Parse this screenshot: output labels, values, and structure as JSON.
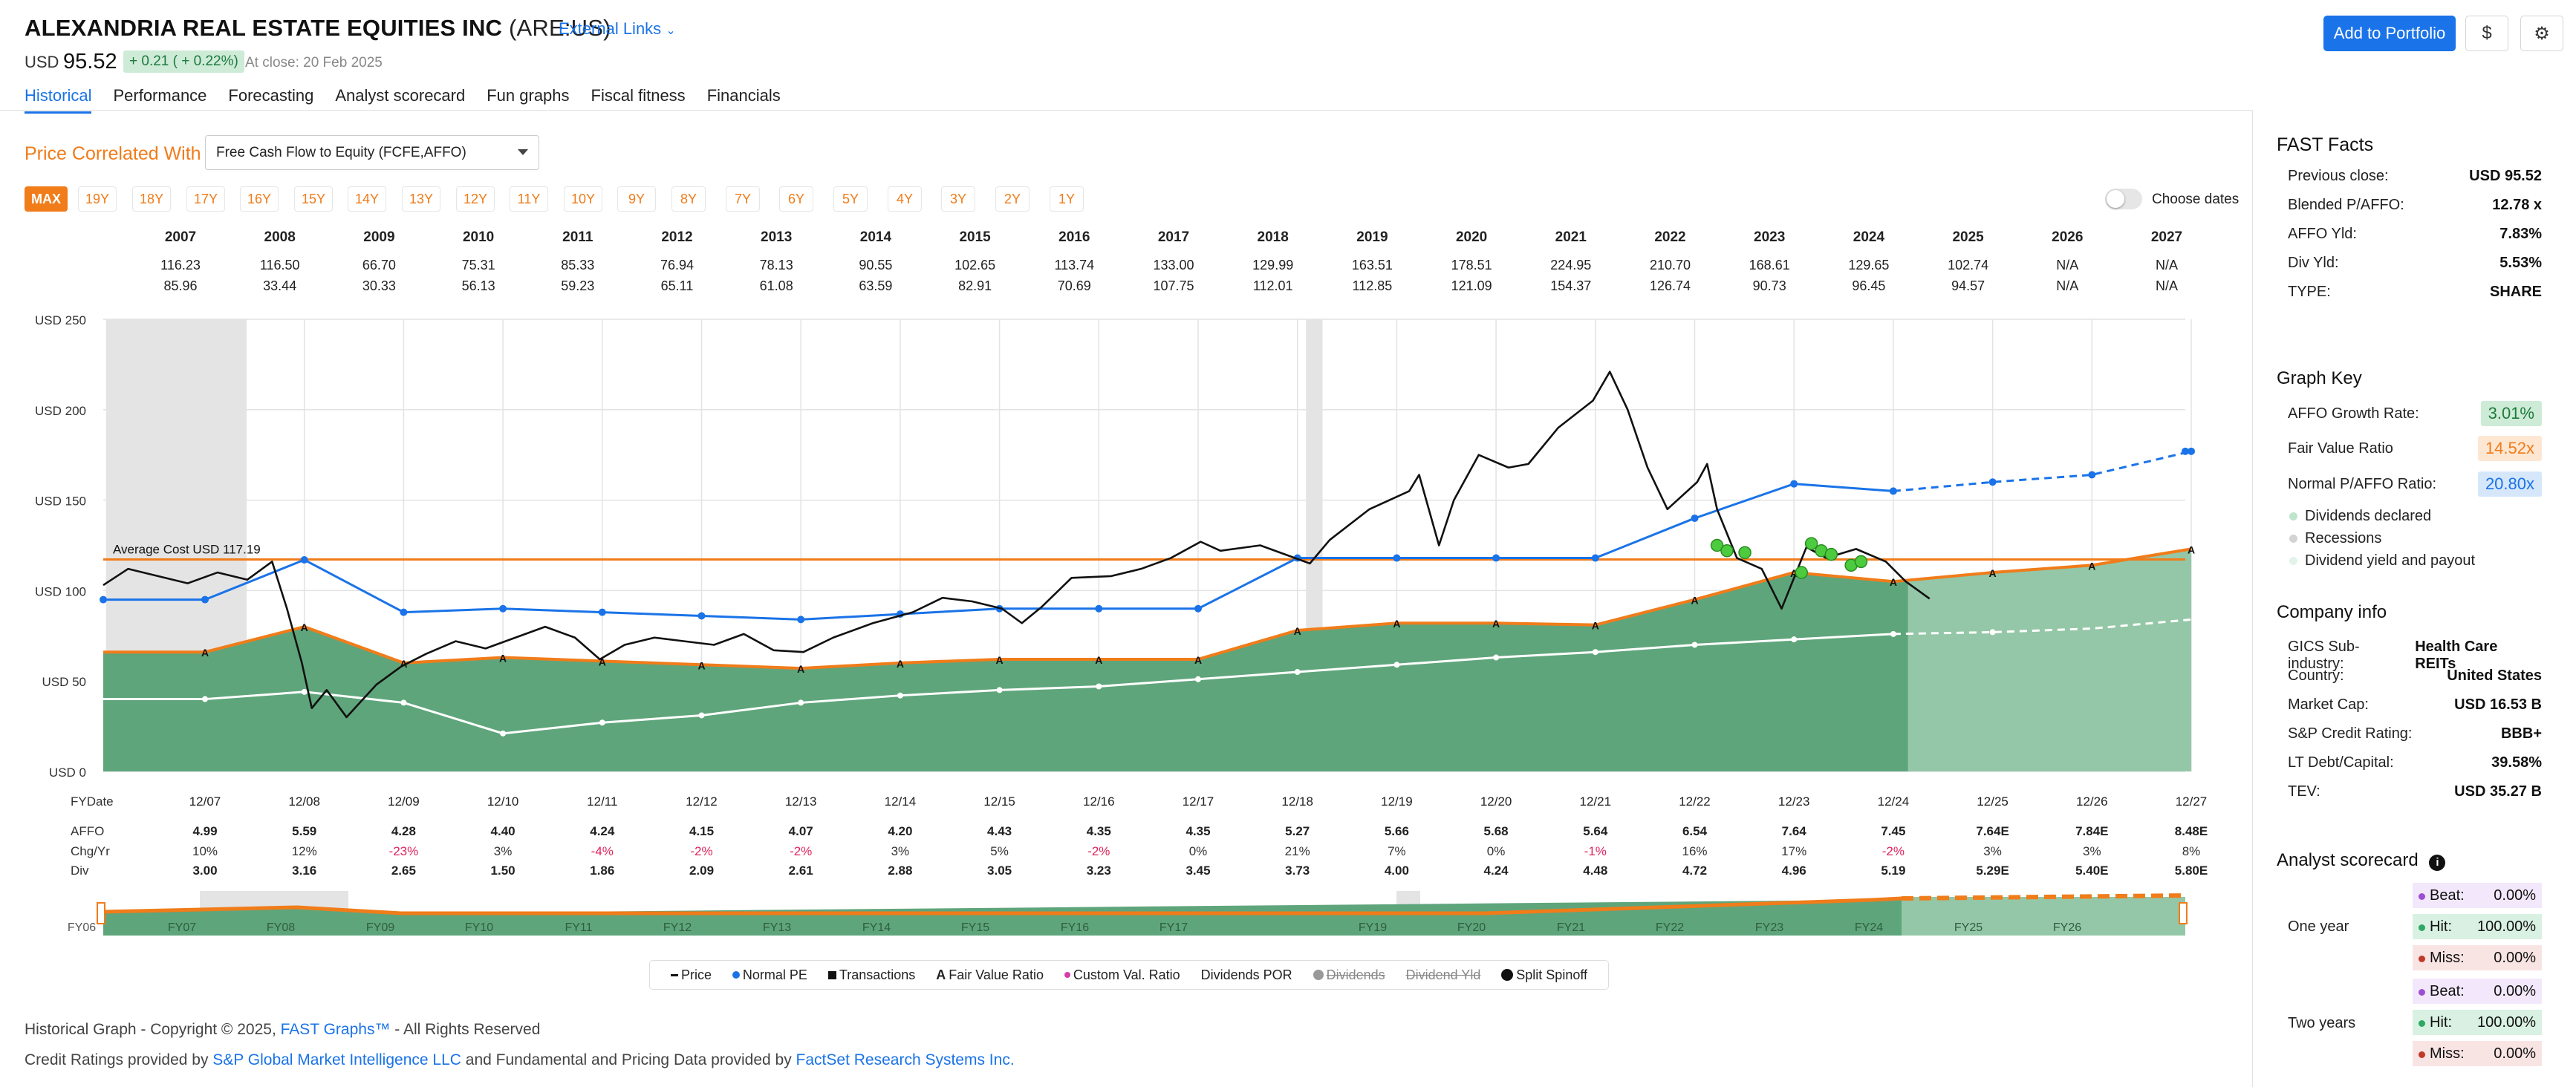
{
  "header": {
    "company": "ALEXANDRIA REAL ESTATE EQUITIES INC",
    "ticker": "(ARE:US)",
    "external_links": "External Links",
    "currency": "USD",
    "price": "95.52",
    "change": "+ 0.21 ( + 0.22%)",
    "close_note": "At close: 20 Feb 2025",
    "add_portfolio": "Add to Portfolio"
  },
  "tabs": [
    "Historical",
    "Performance",
    "Forecasting",
    "Analyst scorecard",
    "Fun graphs",
    "Fiscal fitness",
    "Financials"
  ],
  "controls": {
    "price_corr_label": "Price Correlated With",
    "price_corr_value": "Free Cash Flow to Equity (FCFE,AFFO)",
    "ranges": [
      "MAX",
      "19Y",
      "18Y",
      "17Y",
      "16Y",
      "15Y",
      "14Y",
      "13Y",
      "12Y",
      "11Y",
      "10Y",
      "9Y",
      "8Y",
      "7Y",
      "6Y",
      "5Y",
      "4Y",
      "3Y",
      "2Y",
      "1Y"
    ],
    "choose_dates": "Choose dates"
  },
  "year_table": {
    "years": [
      "2007",
      "2008",
      "2009",
      "2010",
      "2011",
      "2012",
      "2013",
      "2014",
      "2015",
      "2016",
      "2017",
      "2018",
      "2019",
      "2020",
      "2021",
      "2022",
      "2023",
      "2024",
      "2025",
      "2026",
      "2027"
    ],
    "highs": [
      "116.23",
      "116.50",
      "66.70",
      "75.31",
      "85.33",
      "76.94",
      "78.13",
      "90.55",
      "102.65",
      "113.74",
      "133.00",
      "129.99",
      "163.51",
      "178.51",
      "224.95",
      "210.70",
      "168.61",
      "129.65",
      "102.74",
      "N/A",
      "N/A"
    ],
    "lows": [
      "85.96",
      "33.44",
      "30.33",
      "56.13",
      "59.23",
      "65.11",
      "61.08",
      "63.59",
      "82.91",
      "70.69",
      "107.75",
      "112.01",
      "112.85",
      "121.09",
      "154.37",
      "126.74",
      "90.73",
      "96.45",
      "94.57",
      "N/A",
      "N/A"
    ]
  },
  "chart_data": {
    "type": "line",
    "y_axis_ticks": [
      "USD 250",
      "USD 200",
      "USD 150",
      "USD 100",
      "USD 50",
      "USD 0"
    ],
    "ylim": [
      0,
      250
    ],
    "average_cost_label": "Average Cost USD 117.19",
    "average_cost": 117.19,
    "recessions": [
      [
        "2008-01",
        "2009-06"
      ],
      [
        "2020-02",
        "2020-04"
      ]
    ],
    "fy_dates": [
      "12/07",
      "12/08",
      "12/09",
      "12/10",
      "12/11",
      "12/12",
      "12/13",
      "12/14",
      "12/15",
      "12/16",
      "12/17",
      "12/18",
      "12/19",
      "12/20",
      "12/21",
      "12/22",
      "12/23",
      "12/24",
      "12/25",
      "12/26",
      "12/27"
    ],
    "series": [
      {
        "name": "Fair Value Ratio",
        "color": "#f07c1a",
        "values": [
          66,
          80,
          60,
          63,
          61,
          59,
          57,
          60,
          62,
          62,
          62,
          78,
          82,
          82,
          81,
          95,
          110,
          105,
          110,
          114,
          123
        ]
      },
      {
        "name": "Normal PE",
        "color": "#1a73e8",
        "values": [
          95,
          117,
          88,
          90,
          88,
          86,
          84,
          87,
          90,
          90,
          90,
          118,
          118,
          118,
          118,
          140,
          159,
          155,
          160,
          164,
          177
        ]
      },
      {
        "name": "Dividend yield and payout",
        "color": "#ffffff",
        "values": [
          40,
          44,
          38,
          21,
          27,
          31,
          38,
          42,
          45,
          47,
          51,
          55,
          59,
          63,
          66,
          70,
          73,
          76,
          77,
          79,
          84
        ]
      },
      {
        "name": "Price",
        "color": "#111111",
        "values": [
          [
            2006.75,
            103
          ],
          [
            2007.0,
            112
          ],
          [
            2007.3,
            108
          ],
          [
            2007.6,
            104
          ],
          [
            2007.9,
            110
          ],
          [
            2008.2,
            106
          ],
          [
            2008.45,
            116
          ],
          [
            2008.6,
            90
          ],
          [
            2008.75,
            60
          ],
          [
            2008.85,
            35
          ],
          [
            2009.0,
            45
          ],
          [
            2009.2,
            30
          ],
          [
            2009.5,
            48
          ],
          [
            2009.75,
            58
          ],
          [
            2010.0,
            65
          ],
          [
            2010.3,
            72
          ],
          [
            2010.6,
            68
          ],
          [
            2010.9,
            74
          ],
          [
            2011.2,
            80
          ],
          [
            2011.5,
            74
          ],
          [
            2011.75,
            62
          ],
          [
            2012.0,
            70
          ],
          [
            2012.3,
            74
          ],
          [
            2012.6,
            72
          ],
          [
            2012.9,
            70
          ],
          [
            2013.2,
            76
          ],
          [
            2013.5,
            67
          ],
          [
            2013.8,
            66
          ],
          [
            2014.1,
            74
          ],
          [
            2014.5,
            82
          ],
          [
            2014.9,
            88
          ],
          [
            2015.2,
            96
          ],
          [
            2015.5,
            94
          ],
          [
            2015.8,
            90
          ],
          [
            2016.0,
            82
          ],
          [
            2016.2,
            91
          ],
          [
            2016.5,
            107
          ],
          [
            2016.9,
            108
          ],
          [
            2017.2,
            112
          ],
          [
            2017.5,
            118
          ],
          [
            2017.8,
            127
          ],
          [
            2018.0,
            122
          ],
          [
            2018.4,
            125
          ],
          [
            2018.9,
            115
          ],
          [
            2019.1,
            128
          ],
          [
            2019.5,
            145
          ],
          [
            2019.9,
            155
          ],
          [
            2020.0,
            164
          ],
          [
            2020.2,
            125
          ],
          [
            2020.35,
            150
          ],
          [
            2020.6,
            175
          ],
          [
            2020.9,
            168
          ],
          [
            2021.1,
            170
          ],
          [
            2021.4,
            190
          ],
          [
            2021.75,
            205
          ],
          [
            2021.92,
            221
          ],
          [
            2022.1,
            200
          ],
          [
            2022.3,
            168
          ],
          [
            2022.5,
            145
          ],
          [
            2022.8,
            160
          ],
          [
            2022.9,
            170
          ],
          [
            2023.0,
            145
          ],
          [
            2023.2,
            118
          ],
          [
            2023.45,
            112
          ],
          [
            2023.65,
            90
          ],
          [
            2023.9,
            124
          ],
          [
            2024.1,
            118
          ],
          [
            2024.4,
            123
          ],
          [
            2024.7,
            116
          ],
          [
            2024.9,
            105
          ],
          [
            2025.14,
            95.52
          ]
        ]
      }
    ],
    "dividends_declared_markers": [
      [
        2023.0,
        125
      ],
      [
        2023.1,
        122
      ],
      [
        2023.28,
        121
      ],
      [
        2023.85,
        110
      ],
      [
        2023.95,
        126
      ],
      [
        2024.05,
        122
      ],
      [
        2024.15,
        120
      ],
      [
        2024.35,
        114
      ],
      [
        2024.45,
        116
      ]
    ]
  },
  "fundamentals": {
    "labels": [
      "FYDate",
      "AFFO",
      "Chg/Yr",
      "Div"
    ],
    "affo": [
      "4.99",
      "5.59",
      "4.28",
      "4.40",
      "4.24",
      "4.15",
      "4.07",
      "4.20",
      "4.43",
      "4.35",
      "4.35",
      "5.27",
      "5.66",
      "5.68",
      "5.64",
      "6.54",
      "7.64",
      "7.45",
      "7.64E",
      "7.84E",
      "8.48E"
    ],
    "chg": [
      "10%",
      "12%",
      "-23%",
      "3%",
      "-4%",
      "-2%",
      "-2%",
      "3%",
      "5%",
      "-2%",
      "0%",
      "21%",
      "7%",
      "0%",
      "-1%",
      "16%",
      "17%",
      "-2%",
      "3%",
      "3%",
      "8%"
    ],
    "div": [
      "3.00",
      "3.16",
      "2.65",
      "1.50",
      "1.86",
      "2.09",
      "2.61",
      "2.88",
      "3.05",
      "3.23",
      "3.45",
      "3.73",
      "4.00",
      "4.24",
      "4.48",
      "4.72",
      "4.96",
      "5.19",
      "5.29E",
      "5.40E",
      "5.80E"
    ],
    "neg_color": "#e0245e"
  },
  "minimap": {
    "labels": [
      "FY06",
      "FY07",
      "FY08",
      "FY09",
      "FY10",
      "FY11",
      "FY12",
      "FY13",
      "FY14",
      "FY15",
      "FY16",
      "FY17",
      "FY19",
      "FY20",
      "FY21",
      "FY22",
      "FY23",
      "FY24",
      "FY25",
      "FY26"
    ]
  },
  "legend": [
    "Price",
    "Normal PE",
    "Transactions",
    "Fair Value Ratio",
    "Custom Val. Ratio",
    "Dividends POR",
    "Dividends",
    "Dividend Yld",
    "Split Spinoff"
  ],
  "footer": {
    "line1_a": "Historical Graph - Copyright © 2025, ",
    "line1_link": "FAST Graphs™",
    "line1_b": " - All Rights Reserved",
    "line2_a": "Credit Ratings provided by ",
    "line2_link1": "S&P Global Market Intelligence LLC",
    "line2_b": " and Fundamental and Pricing Data provided by ",
    "line2_link2": "FactSet Research Systems Inc."
  },
  "sidebar": {
    "fast_facts_title": "FAST Facts",
    "fast_facts": [
      [
        "Previous close:",
        "USD 95.52"
      ],
      [
        "Blended P/AFFO:",
        "12.78 x"
      ],
      [
        "AFFO Yld:",
        "7.83%"
      ],
      [
        "Div Yld:",
        "5.53%"
      ],
      [
        "TYPE:",
        "SHARE"
      ]
    ],
    "graph_key_title": "Graph Key",
    "graph_key": [
      [
        "AFFO Growth Rate:",
        "3.01%"
      ],
      [
        "Fair Value Ratio",
        "14.52x"
      ],
      [
        "Normal P/AFFO Ratio:",
        "20.80x"
      ]
    ],
    "graph_key_dots": [
      "Dividends declared",
      "Recessions",
      "Dividend yield and payout"
    ],
    "company_info_title": "Company info",
    "company_info": [
      [
        "GICS Sub-industry:",
        "Health Care REITs"
      ],
      [
        "Country:",
        "United States"
      ],
      [
        "Market Cap:",
        "USD 16.53 B"
      ],
      [
        "S&P Credit Rating:",
        "BBB+"
      ],
      [
        "LT Debt/Capital:",
        "39.58%"
      ],
      [
        "TEV:",
        "USD 35.27 B"
      ]
    ],
    "analyst_title": "Analyst scorecard",
    "one_year": "One year",
    "two_years": "Two years",
    "scores": [
      [
        "Beat:",
        "0.00%"
      ],
      [
        "Hit:",
        "100.00%"
      ],
      [
        "Miss:",
        "0.00%"
      ],
      [
        "Beat:",
        "0.00%"
      ],
      [
        "Hit:",
        "100.00%"
      ],
      [
        "Miss:",
        "0.00%"
      ]
    ]
  }
}
